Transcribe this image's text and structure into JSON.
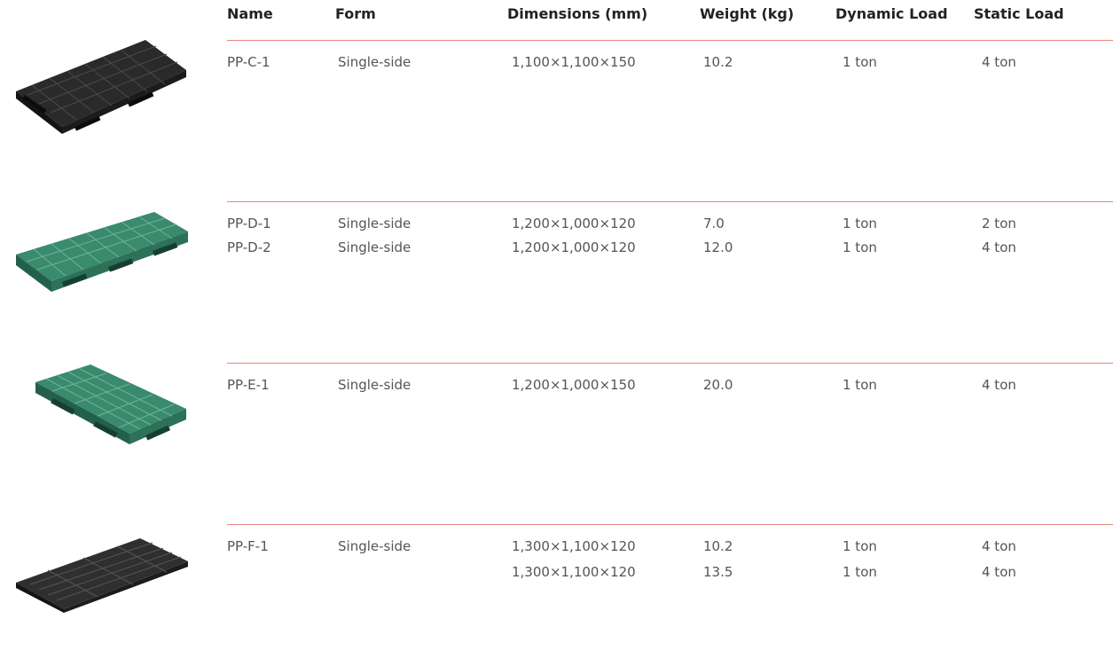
{
  "table": {
    "headers": {
      "name": "Name",
      "form": "Form",
      "dimensions": "Dimensions (mm)",
      "weight": "Weight (kg)",
      "dynamic_load": "Dynamic Load",
      "static_load": "Static Load"
    },
    "divider_color": "#e8867c",
    "products": [
      {
        "pallet_color": "black",
        "rows": [
          {
            "name": "PP-C-1",
            "form": "Single-side",
            "dimensions": "1,100×1,100×150",
            "weight": "10.2",
            "dynamic_load": "1 ton",
            "static_load": "4 ton"
          }
        ]
      },
      {
        "pallet_color": "green",
        "rows": [
          {
            "name": "PP-D-1",
            "form": "Single-side",
            "dimensions": "1,200×1,000×120",
            "weight": "7.0",
            "dynamic_load": "1 ton",
            "static_load": "2 ton"
          },
          {
            "name": "PP-D-2",
            "form": "Single-side",
            "dimensions": "1,200×1,000×120",
            "weight": "12.0",
            "dynamic_load": "1 ton",
            "static_load": "4 ton"
          }
        ]
      },
      {
        "pallet_color": "green",
        "rows": [
          {
            "name": "PP-E-1",
            "form": "Single-side",
            "dimensions": "1,200×1,000×150",
            "weight": "20.0",
            "dynamic_load": "1 ton",
            "static_load": "4 ton"
          }
        ]
      },
      {
        "pallet_color": "black",
        "rows": [
          {
            "name": "PP-F-1",
            "form": "Single-side",
            "dimensions": "1,300×1,100×120",
            "weight": "10.2",
            "dynamic_load": "1 ton",
            "static_load": "4 ton"
          },
          {
            "name": "",
            "form": "",
            "dimensions": "1,300×1,100×120",
            "weight": "13.5",
            "dynamic_load": "1 ton",
            "static_load": "4 ton"
          }
        ]
      }
    ]
  }
}
